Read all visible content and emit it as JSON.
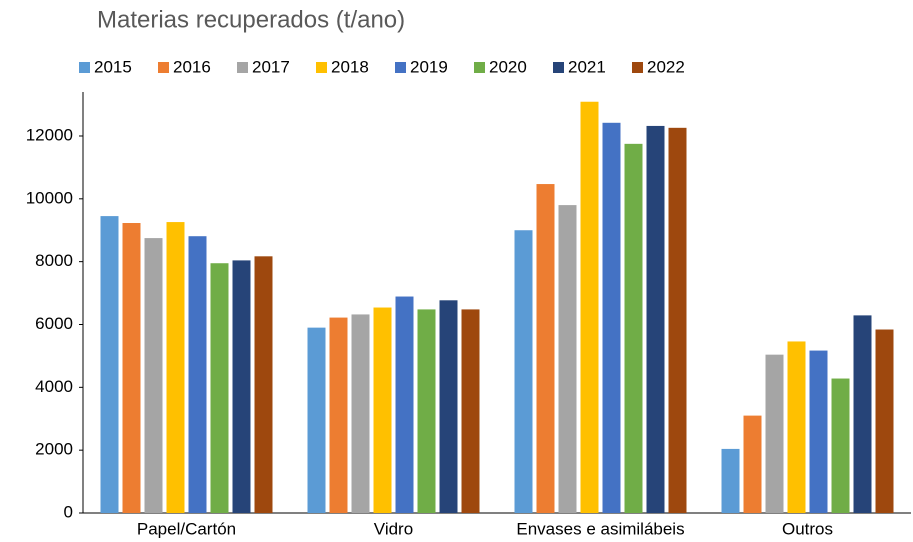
{
  "chart_data": {
    "type": "bar",
    "title": "Materias recuperados (t/ano)",
    "categories": [
      "Papel/Cartón",
      "Vidro",
      "Envases e asimilábeis",
      "Outros"
    ],
    "series": [
      {
        "name": "2015",
        "color": "#5b9bd5",
        "values": [
          9450,
          5900,
          9000,
          2040
        ]
      },
      {
        "name": "2016",
        "color": "#ed7d31",
        "values": [
          9230,
          6220,
          10470,
          3100
        ]
      },
      {
        "name": "2017",
        "color": "#a5a5a5",
        "values": [
          8750,
          6320,
          9800,
          5040
        ]
      },
      {
        "name": "2018",
        "color": "#ffc000",
        "values": [
          9260,
          6540,
          13090,
          5460
        ]
      },
      {
        "name": "2019",
        "color": "#4472c4",
        "values": [
          8810,
          6890,
          12420,
          5170
        ]
      },
      {
        "name": "2020",
        "color": "#70ad47",
        "values": [
          7950,
          6480,
          11750,
          4280
        ]
      },
      {
        "name": "2021",
        "color": "#264478",
        "values": [
          8040,
          6770,
          12320,
          6290
        ]
      },
      {
        "name": "2022",
        "color": "#9e480e",
        "values": [
          8170,
          6480,
          12260,
          5840
        ]
      }
    ],
    "ylim": [
      0,
      13400
    ],
    "yticks": [
      0,
      2000,
      4000,
      6000,
      8000,
      10000,
      12000
    ],
    "grid": false,
    "legend": "top"
  }
}
